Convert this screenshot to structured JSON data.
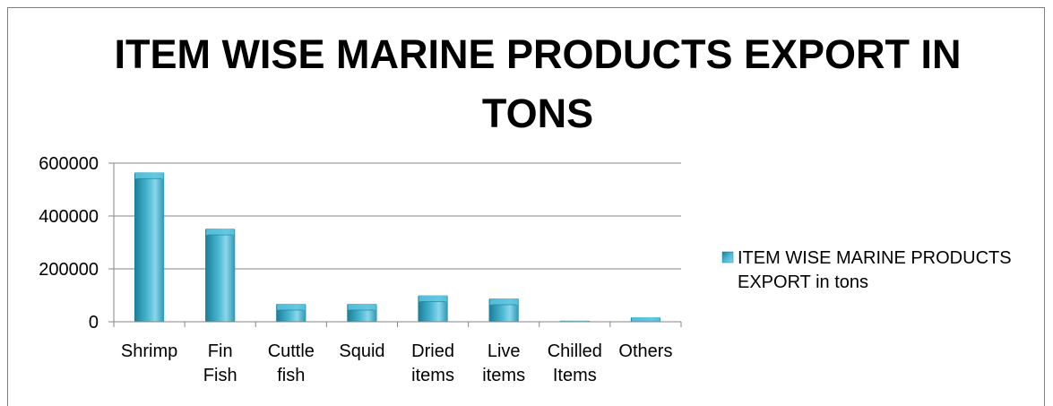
{
  "chart_data": {
    "type": "bar",
    "title": "ITEM WISE MARINE PRODUCTS EXPORT IN TONS",
    "categories": [
      [
        "Shrimp"
      ],
      [
        "Fin",
        "Fish"
      ],
      [
        "Cuttle",
        "fish"
      ],
      [
        "Squid"
      ],
      [
        "Dried",
        "items"
      ],
      [
        "Live",
        "items"
      ],
      [
        "Chilled",
        "Items"
      ],
      [
        "Others"
      ]
    ],
    "series": [
      {
        "name": "ITEM WISE MARINE PRODUCTS EXPORT in tons",
        "values": [
          565000,
          352000,
          68000,
          68000,
          100000,
          88000,
          4000,
          17000
        ]
      }
    ],
    "ylim": [
      0,
      600000
    ],
    "yticks": [
      0,
      200000,
      400000,
      600000
    ],
    "grid": true,
    "legend_position": "right",
    "colors": {
      "bar_dark": "#1b7d96",
      "bar_mid": "#4bb8d4",
      "bar_light": "#8bd6ea",
      "bar_top": "#3aa6c2"
    }
  }
}
